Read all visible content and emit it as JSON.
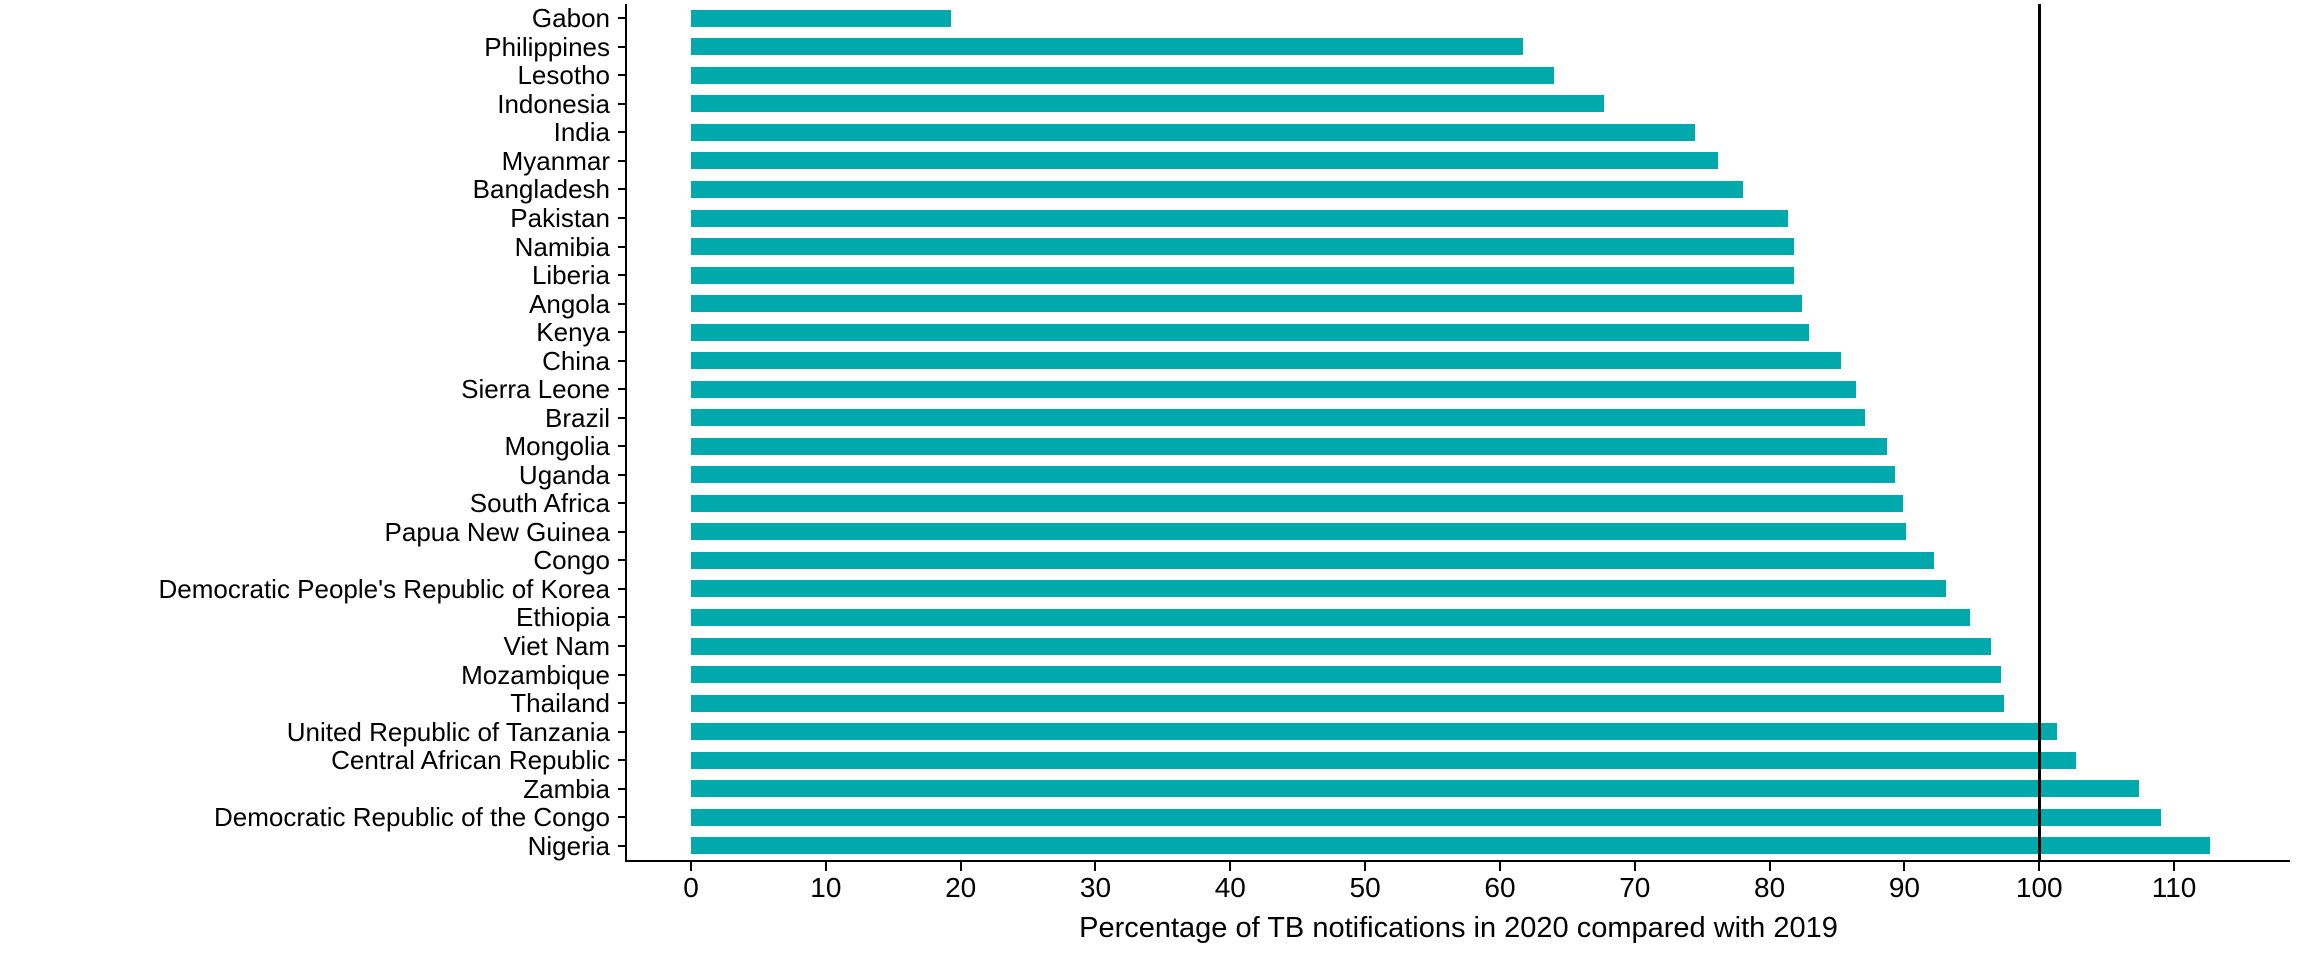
{
  "chart_data": {
    "type": "bar",
    "orientation": "horizontal",
    "title": "",
    "xlabel": "Percentage of TB notifications in 2020 compared with 2019",
    "ylabel": "",
    "categories": [
      "Gabon",
      "Philippines",
      "Lesotho",
      "Indonesia",
      "India",
      "Myanmar",
      "Bangladesh",
      "Pakistan",
      "Namibia",
      "Liberia",
      "Angola",
      "Kenya",
      "China",
      "Sierra Leone",
      "Brazil",
      "Mongolia",
      "Uganda",
      "South Africa",
      "Papua New Guinea",
      "Congo",
      "Democratic People's Republic of Korea",
      "Ethiopia",
      "Viet Nam",
      "Mozambique",
      "Thailand",
      "United Republic of Tanzania",
      "Central African Republic",
      "Zambia",
      "Democratic Republic of the Congo",
      "Nigeria"
    ],
    "values": [
      19.3,
      61.7,
      64.0,
      67.7,
      74.5,
      76.2,
      78.0,
      81.4,
      81.8,
      81.8,
      82.4,
      82.9,
      85.3,
      86.4,
      87.1,
      88.7,
      89.3,
      89.9,
      90.1,
      92.2,
      93.1,
      94.9,
      96.4,
      97.2,
      97.4,
      101.3,
      102.7,
      107.4,
      109.0,
      112.7
    ],
    "xticks": [
      0,
      10,
      20,
      30,
      40,
      50,
      60,
      70,
      80,
      90,
      100,
      110
    ],
    "xlim": [
      -4.75,
      118.6
    ],
    "reference_line_x": 100,
    "bar_color": "#00A9AC",
    "axis_color": "#000000",
    "grid": false,
    "legend_position": "none"
  }
}
